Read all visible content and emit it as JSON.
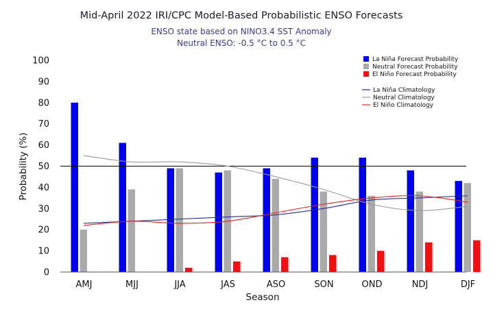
{
  "chart_data": {
    "type": "bar",
    "title": "Mid-April 2022 IRI/CPC Model-Based Probabilistic ENSO Forecasts",
    "subtitle_lines": [
      "ENSO state based on NINO3.4 SST Anomaly",
      "Neutral ENSO: -0.5 °C to 0.5 °C"
    ],
    "xlabel": "Season",
    "ylabel": "Probability (%)",
    "ylim": [
      0,
      100
    ],
    "yticks": [
      0,
      10,
      20,
      30,
      40,
      50,
      60,
      70,
      80,
      90,
      100
    ],
    "reference_line": 50,
    "grid": false,
    "legend_position": "top-right",
    "categories": [
      "AMJ",
      "MJJ",
      "JJA",
      "JAS",
      "ASO",
      "SON",
      "OND",
      "NDJ",
      "DJF"
    ],
    "series": [
      {
        "name": "La Niña Forecast Probability",
        "color": "#0000ee",
        "values": [
          80,
          61,
          49,
          47,
          49,
          54,
          54,
          48,
          43
        ]
      },
      {
        "name": "Neutral Forecast Probability",
        "color": "#aaaaaa",
        "values": [
          20,
          39,
          49,
          48,
          44,
          38,
          36,
          38,
          42
        ]
      },
      {
        "name": "El Niño Forecast Probability",
        "color": "#ee1111",
        "values": [
          0,
          0,
          2,
          5,
          7,
          8,
          10,
          14,
          15
        ]
      }
    ],
    "climatology": [
      {
        "name": "La Niña Climatology",
        "color": "#1f2f99",
        "values": [
          23,
          24,
          25,
          26,
          27,
          30,
          34,
          35,
          36
        ]
      },
      {
        "name": "Neutral Climatology",
        "color": "#999999",
        "values": [
          55,
          52,
          52,
          50,
          45,
          39,
          32,
          29,
          31
        ]
      },
      {
        "name": "El Niño Climatology",
        "color": "#ee2222",
        "values": [
          22,
          24,
          23,
          24,
          28,
          32,
          35,
          36,
          33
        ]
      }
    ]
  }
}
